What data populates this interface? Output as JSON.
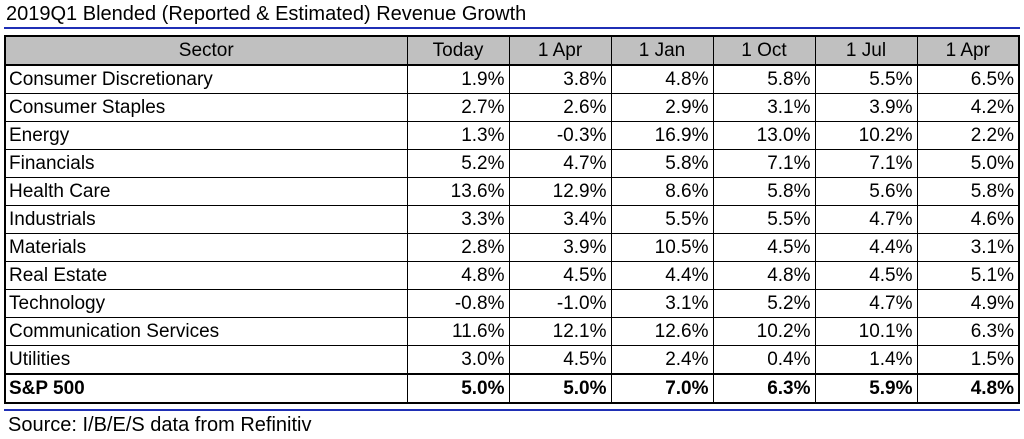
{
  "title": "2019Q1 Blended (Reported & Estimated) Revenue Growth",
  "colors": {
    "rule": "#1f2fb5",
    "header_bg": "#c0c0c0",
    "text": "#000000"
  },
  "table": {
    "columns": [
      "Sector",
      "Today",
      "1 Apr",
      "1 Jan",
      "1 Oct",
      "1 Jul",
      "1 Apr"
    ],
    "rows": [
      [
        "Consumer Discretionary",
        "1.9%",
        "3.8%",
        "4.8%",
        "5.8%",
        "5.5%",
        "6.5%"
      ],
      [
        "Consumer Staples",
        "2.7%",
        "2.6%",
        "2.9%",
        "3.1%",
        "3.9%",
        "4.2%"
      ],
      [
        "Energy",
        "1.3%",
        "-0.3%",
        "16.9%",
        "13.0%",
        "10.2%",
        "2.2%"
      ],
      [
        "Financials",
        "5.2%",
        "4.7%",
        "5.8%",
        "7.1%",
        "7.1%",
        "5.0%"
      ],
      [
        "Health Care",
        "13.6%",
        "12.9%",
        "8.6%",
        "5.8%",
        "5.6%",
        "5.8%"
      ],
      [
        "Industrials",
        "3.3%",
        "3.4%",
        "5.5%",
        "5.5%",
        "4.7%",
        "4.6%"
      ],
      [
        "Materials",
        "2.8%",
        "3.9%",
        "10.5%",
        "4.5%",
        "4.4%",
        "3.1%"
      ],
      [
        "Real Estate",
        "4.8%",
        "4.5%",
        "4.4%",
        "4.8%",
        "4.5%",
        "5.1%"
      ],
      [
        "Technology",
        "-0.8%",
        "-1.0%",
        "3.1%",
        "5.2%",
        "4.7%",
        "4.9%"
      ],
      [
        "Communication Services",
        "11.6%",
        "12.1%",
        "12.6%",
        "10.2%",
        "10.1%",
        "6.3%"
      ],
      [
        "Utilities",
        "3.0%",
        "4.5%",
        "2.4%",
        "0.4%",
        "1.4%",
        "1.5%"
      ]
    ],
    "total": [
      "S&P 500",
      "5.0%",
      "5.0%",
      "7.0%",
      "6.3%",
      "5.9%",
      "4.8%"
    ]
  },
  "source": "Source: I/B/E/S data from Refinitiv"
}
